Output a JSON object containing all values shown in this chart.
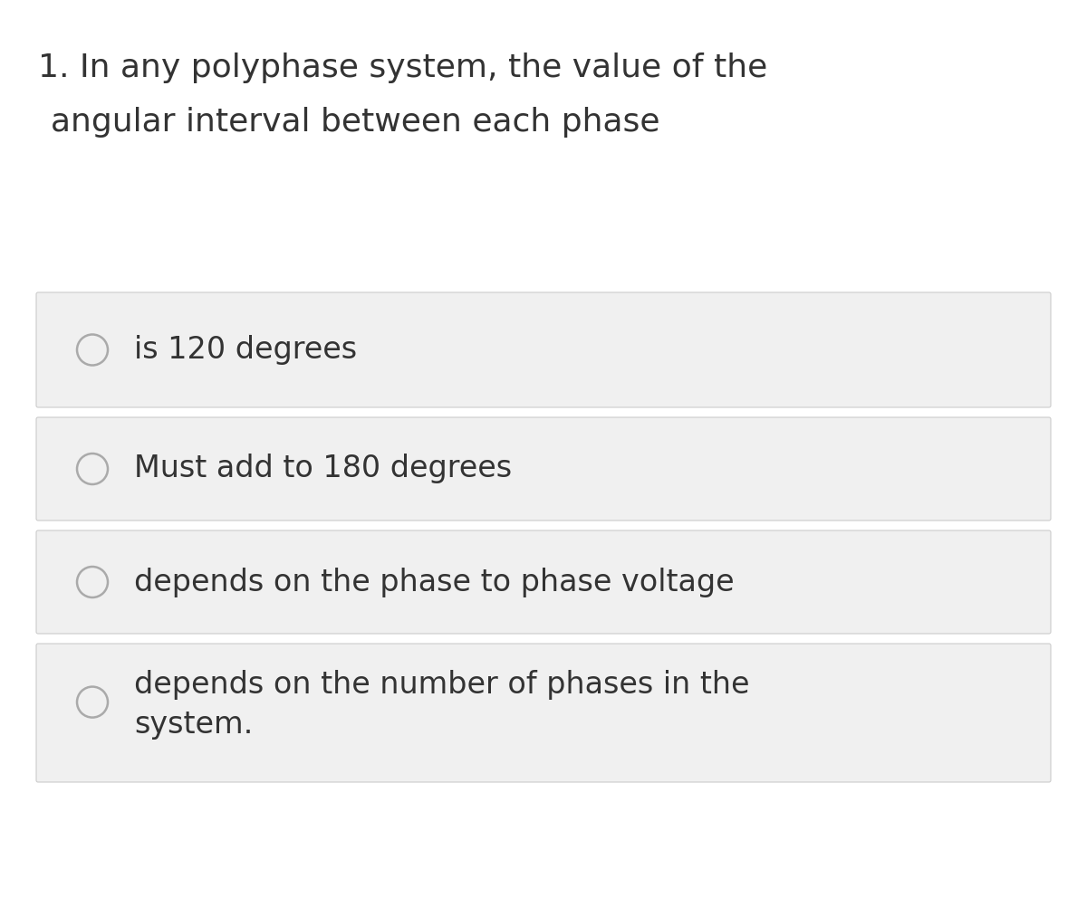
{
  "background_color": "#ffffff",
  "question_text_line1": "1. In any polyphase system, the value of the",
  "question_text_line2": "   angular interval between each phase",
  "options": [
    "is 120 degrees",
    "Must add to 180 degrees",
    "depends on the phase to phase voltage",
    "depends on the number of phases in the\nsystem."
  ],
  "option_box_color": "#f0f0f0",
  "option_box_edge_color": "#cccccc",
  "circle_edge_color": "#aaaaaa",
  "circle_fill": "#f0f0f0",
  "text_color": "#333333",
  "question_fontsize": 26,
  "option_fontsize": 24,
  "fig_width": 12.0,
  "fig_height": 10.13,
  "fig_dpi": 100
}
